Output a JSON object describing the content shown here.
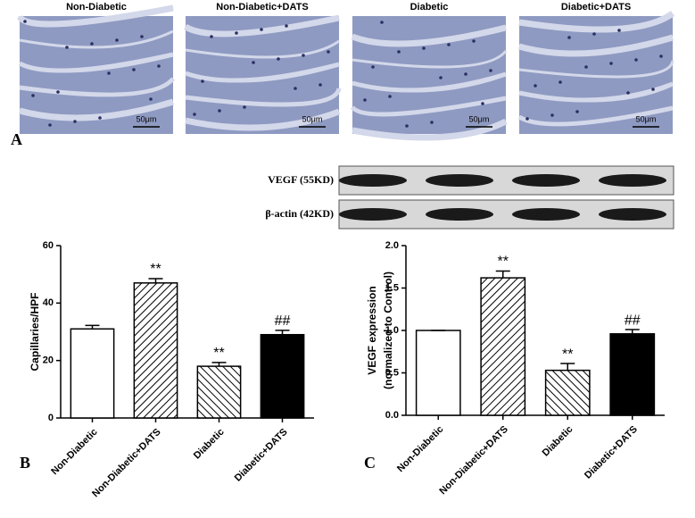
{
  "micrographs": {
    "panel": "A",
    "titles": [
      "Non-Diabetic",
      "Non-Diabetic+DATS",
      "Diabetic",
      "Diabetic+DATS"
    ],
    "scale_bars": [
      "50μm",
      "50μm",
      "50μm",
      "50μm"
    ]
  },
  "blot": {
    "rows": [
      "VEGF (55KD)",
      "β-actin (42KD)"
    ]
  },
  "chart_data": [
    {
      "type": "bar",
      "panel": "B",
      "ylabel": "Capillaries/HPF",
      "categories": [
        "Non-Diabetic",
        "Non-Diabetic+DATS",
        "Diabetic",
        "Diabetic+DATS"
      ],
      "values": [
        31,
        47,
        18,
        29
      ],
      "errors": [
        1.2,
        1.5,
        1.3,
        1.5
      ],
      "annotations": [
        null,
        "**",
        "**",
        "##"
      ],
      "fills": [
        "#ffffff",
        "hatch-right",
        "hatch-left",
        "#000000"
      ],
      "ylim": [
        0,
        60
      ],
      "yticks": [
        0,
        20,
        40,
        60
      ]
    },
    {
      "type": "bar",
      "panel": "C",
      "ylabel": [
        "VEGF expression",
        "(normalized to Control)"
      ],
      "categories": [
        "Non-Diabetic",
        "Non-Diabetic+DATS",
        "Diabetic",
        "Diabetic+DATS"
      ],
      "values": [
        1.0,
        1.62,
        0.53,
        0.96
      ],
      "errors": [
        0,
        0.08,
        0.08,
        0.05
      ],
      "annotations": [
        null,
        "**",
        "**",
        "##"
      ],
      "fills": [
        "#ffffff",
        "hatch-right",
        "hatch-left",
        "#000000"
      ],
      "ylim": [
        0,
        2.0
      ],
      "yticks": [
        {
          "value": 0,
          "label": "0.0"
        },
        0.5,
        {
          "value": 1,
          "label": "1.0"
        },
        1.5,
        {
          "value": 2,
          "label": "2.0"
        }
      ]
    }
  ]
}
